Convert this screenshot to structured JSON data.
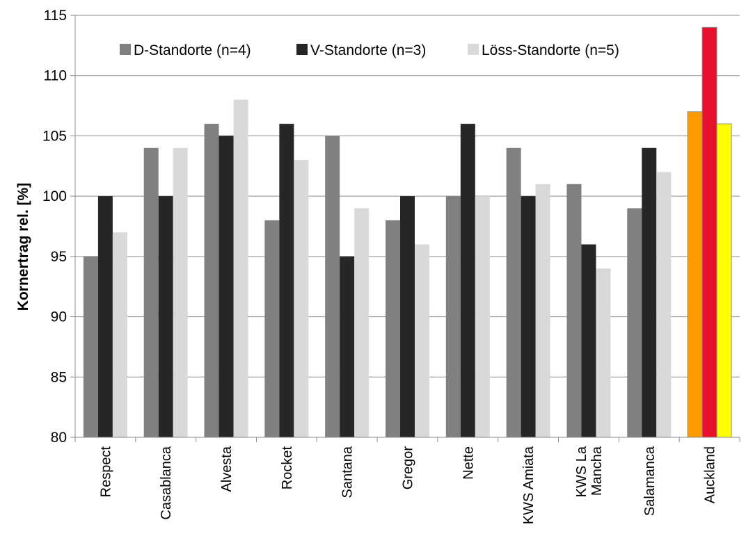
{
  "chart_data": {
    "type": "bar",
    "title": "",
    "xlabel": "",
    "ylabel": "Kornertrag rel. [%]",
    "ylim": [
      80,
      115
    ],
    "yticks": [
      80,
      85,
      90,
      95,
      100,
      105,
      110,
      115
    ],
    "grid": "horizontal",
    "legend_position": "top-left-inside",
    "categories": [
      [
        "Respect"
      ],
      [
        "Casablanca"
      ],
      [
        "Alvesta"
      ],
      [
        "Rocket"
      ],
      [
        "Santana"
      ],
      [
        "Gregor"
      ],
      [
        "Nette"
      ],
      [
        "KWS Amiata"
      ],
      [
        "KWS La",
        "Mancha"
      ],
      [
        "Salamanca"
      ],
      [
        "Auckland"
      ]
    ],
    "series": [
      {
        "name": "D-Standorte (n=4)",
        "color": "#808080",
        "values": [
          95,
          104,
          106,
          98,
          105,
          98,
          100,
          104,
          101,
          99,
          107
        ]
      },
      {
        "name": "V-Standorte (n=3)",
        "color": "#262626",
        "values": [
          100,
          100,
          105,
          106,
          95,
          100,
          106,
          100,
          96,
          104,
          114
        ]
      },
      {
        "name": "Löss-Standorte (n=5)",
        "color": "#d9d9d9",
        "values": [
          97,
          104,
          108,
          103,
          99,
          96,
          100,
          101,
          94,
          102,
          106
        ]
      }
    ],
    "highlight": {
      "category_index": 10,
      "colors": [
        "#ff9900",
        "#e8112d",
        "#ffff00"
      ]
    }
  }
}
